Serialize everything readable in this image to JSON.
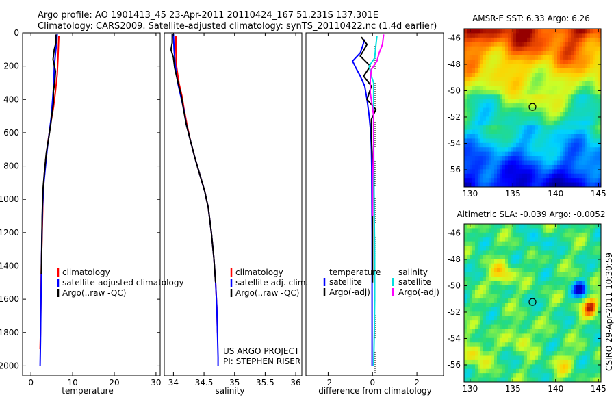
{
  "header": {
    "title_line1": "Argo profile: AO 1901413_45 23-Apr-2011 20110424_167 51.231S 137.301E",
    "title_line2": "Climatology: CARS2009. Satellite-adjusted climatology: synTS_20110422.nc (1.4d earlier)"
  },
  "side_text": "CSIRO 29-Apr-2011 10:30:59",
  "chart_data": [
    {
      "type": "line",
      "xlabel": "temperature",
      "xlim": [
        -2,
        31
      ],
      "ylim": [
        2060,
        0
      ],
      "xticks": [
        "0",
        "10",
        "20",
        "30"
      ],
      "xtick_values": [
        0,
        10,
        20,
        30
      ],
      "yticks": [
        "0",
        "200",
        "400",
        "600",
        "800",
        "1000",
        "1200",
        "1400",
        "1600",
        "1800",
        "2000"
      ],
      "ytick_values": [
        0,
        200,
        400,
        600,
        800,
        1000,
        1200,
        1400,
        1600,
        1800,
        2000
      ],
      "legend": [
        "climatology",
        "satellite-adjusted climatology",
        "Argo(..raw -QC)"
      ],
      "series": [
        {
          "name": "climatology",
          "color": "#ff0000",
          "points": [
            [
              6.7,
              20
            ],
            [
              6.6,
              80
            ],
            [
              6.5,
              150
            ],
            [
              6.3,
              250
            ],
            [
              5.9,
              350
            ],
            [
              5.4,
              450
            ],
            [
              4.7,
              550
            ],
            [
              4.1,
              650
            ],
            [
              3.6,
              750
            ],
            [
              3.2,
              850
            ],
            [
              2.9,
              1000
            ],
            [
              2.7,
              1200
            ],
            [
              2.5,
              1400
            ],
            [
              2.4,
              1600
            ],
            [
              2.3,
              1800
            ],
            [
              2.2,
              1900
            ]
          ]
        },
        {
          "name": "satellite-adjusted climatology",
          "color": "#0000ff",
          "points": [
            [
              6.3,
              5
            ],
            [
              6.2,
              60
            ],
            [
              6.0,
              100
            ],
            [
              5.8,
              150
            ],
            [
              5.6,
              200
            ],
            [
              5.5,
              300
            ],
            [
              5.2,
              400
            ],
            [
              4.9,
              500
            ],
            [
              4.4,
              600
            ],
            [
              3.9,
              700
            ],
            [
              3.5,
              800
            ],
            [
              3.1,
              900
            ],
            [
              2.8,
              1050
            ],
            [
              2.6,
              1250
            ],
            [
              2.5,
              1450
            ],
            [
              2.4,
              1650
            ],
            [
              2.3,
              1850
            ],
            [
              2.2,
              2000
            ]
          ]
        },
        {
          "name": "Argo(..raw -QC)",
          "color": "#000000",
          "points": [
            [
              6.0,
              10
            ],
            [
              6.0,
              60
            ],
            [
              5.6,
              100
            ],
            [
              5.3,
              160
            ],
            [
              5.9,
              230
            ],
            [
              5.7,
              300
            ],
            [
              5.4,
              350
            ],
            [
              5.4,
              420
            ],
            [
              5.1,
              480
            ],
            [
              4.7,
              560
            ],
            [
              4.2,
              640
            ],
            [
              3.7,
              720
            ],
            [
              3.3,
              820
            ],
            [
              2.9,
              940
            ],
            [
              2.7,
              1100
            ],
            [
              2.6,
              1300
            ],
            [
              2.5,
              1450
            ]
          ]
        }
      ]
    },
    {
      "type": "line",
      "xlabel": "salinity",
      "xlim": [
        33.85,
        36.1
      ],
      "ylim": [
        2060,
        0
      ],
      "xticks": [
        "34",
        "34.5",
        "35",
        "35.5",
        "36"
      ],
      "xtick_values": [
        34,
        34.5,
        35,
        35.5,
        36
      ],
      "yticks": [],
      "legend": [
        "climatology",
        "satellite adj. clim.",
        "Argo(..raw -QC)"
      ],
      "annotations": [
        "US ARGO PROJECT",
        "PI: STEPHEN RISER"
      ],
      "series": [
        {
          "name": "climatology",
          "color": "#ff0000",
          "points": [
            [
              34.04,
              20
            ],
            [
              34.04,
              100
            ],
            [
              34.05,
              200
            ],
            [
              34.09,
              300
            ],
            [
              34.14,
              380
            ],
            [
              34.17,
              450
            ],
            [
              34.22,
              550
            ],
            [
              34.28,
              650
            ],
            [
              34.35,
              750
            ],
            [
              34.43,
              850
            ],
            [
              34.51,
              950
            ],
            [
              34.57,
              1050
            ],
            [
              34.62,
              1200
            ],
            [
              34.66,
              1350
            ],
            [
              34.69,
              1500
            ],
            [
              34.71,
              1650
            ],
            [
              34.72,
              1800
            ]
          ]
        },
        {
          "name": "satellite adj. clim.",
          "color": "#0000ff",
          "points": [
            [
              34.0,
              5
            ],
            [
              34.01,
              100
            ],
            [
              34.03,
              200
            ],
            [
              34.07,
              300
            ],
            [
              34.12,
              380
            ],
            [
              34.17,
              460
            ],
            [
              34.21,
              550
            ],
            [
              34.28,
              650
            ],
            [
              34.35,
              750
            ],
            [
              34.43,
              850
            ],
            [
              34.51,
              950
            ],
            [
              34.57,
              1050
            ],
            [
              34.62,
              1200
            ],
            [
              34.66,
              1350
            ],
            [
              34.69,
              1500
            ],
            [
              34.71,
              1650
            ],
            [
              34.72,
              1800
            ],
            [
              34.73,
              1950
            ],
            [
              34.73,
              2000
            ]
          ]
        },
        {
          "name": "Argo(..raw -QC)",
          "color": "#000000",
          "points": [
            [
              33.98,
              5
            ],
            [
              33.98,
              60
            ],
            [
              33.96,
              100
            ],
            [
              34.0,
              150
            ],
            [
              34.02,
              210
            ],
            [
              34.05,
              260
            ],
            [
              34.09,
              320
            ],
            [
              34.13,
              380
            ],
            [
              34.16,
              450
            ],
            [
              34.21,
              550
            ],
            [
              34.28,
              650
            ],
            [
              34.35,
              750
            ],
            [
              34.43,
              850
            ],
            [
              34.51,
              950
            ],
            [
              34.57,
              1050
            ],
            [
              34.62,
              1200
            ],
            [
              34.66,
              1350
            ],
            [
              34.69,
              1500
            ]
          ]
        }
      ]
    },
    {
      "type": "line",
      "xlabel": "difference from climatology",
      "xlim": [
        -3,
        3.2
      ],
      "ylim": [
        2060,
        0
      ],
      "xticks": [
        "-2",
        "0",
        "2"
      ],
      "xtick_values": [
        -2,
        0,
        2
      ],
      "yticks": [],
      "legend_headers": [
        "temperature",
        "salinity"
      ],
      "legend": [
        "satellite",
        "Argo(-adj)",
        "satellite",
        "Argo(-adj)"
      ],
      "series": [
        {
          "name": "satellite",
          "color": "#0000ff",
          "points": [
            [
              -0.35,
              40
            ],
            [
              -0.45,
              80
            ],
            [
              -0.55,
              120
            ],
            [
              -0.9,
              170
            ],
            [
              -0.75,
              210
            ],
            [
              -0.55,
              260
            ],
            [
              -0.35,
              320
            ],
            [
              -0.25,
              400
            ],
            [
              -0.15,
              500
            ],
            [
              -0.08,
              600
            ],
            [
              -0.05,
              700
            ],
            [
              -0.04,
              800
            ],
            [
              -0.03,
              1000
            ],
            [
              -0.02,
              1200
            ],
            [
              -0.02,
              1600
            ],
            [
              -0.02,
              2000
            ]
          ]
        },
        {
          "name": "Argo(-adj)",
          "color": "#000000",
          "points": [
            [
              -0.5,
              25
            ],
            [
              -0.25,
              70
            ],
            [
              -0.55,
              140
            ],
            [
              -0.1,
              200
            ],
            [
              -0.4,
              260
            ],
            [
              -0.05,
              320
            ],
            [
              -0.25,
              400
            ],
            [
              0.15,
              460
            ],
            [
              -0.05,
              520
            ],
            [
              -0.05,
              620
            ],
            [
              0,
              800
            ],
            [
              0,
              1100
            ],
            [
              0,
              1500
            ]
          ]
        },
        {
          "name": "satellite",
          "color": "#00e0e0",
          "points": [
            [
              0.2,
              20
            ],
            [
              0.15,
              80
            ],
            [
              0.1,
              150
            ],
            [
              -0.15,
              200
            ],
            [
              -0.05,
              260
            ],
            [
              0.05,
              300
            ],
            [
              0.05,
              500
            ],
            [
              0.06,
              800
            ],
            [
              0.08,
              1100
            ],
            [
              0.1,
              1350
            ],
            [
              0.1,
              1600
            ],
            [
              0.08,
              1800
            ],
            [
              0.05,
              2000
            ]
          ]
        },
        {
          "name": "Argo(-adj)",
          "color": "#ff00ff",
          "points": [
            [
              0.5,
              10
            ],
            [
              0.45,
              70
            ],
            [
              0.3,
              120
            ],
            [
              0.2,
              170
            ],
            [
              -0.05,
              220
            ],
            [
              -0.1,
              280
            ],
            [
              -0.1,
              360
            ],
            [
              0,
              450
            ],
            [
              0.05,
              500
            ],
            [
              0.05,
              700
            ],
            [
              0,
              900
            ],
            [
              0,
              1100
            ]
          ]
        }
      ]
    },
    {
      "type": "heatmap",
      "title": "AMSR-E SST: 6.33 Argo: 6.26",
      "xlim": [
        129.3,
        145.3
      ],
      "ylim": [
        -57.3,
        -45.3
      ],
      "xticks": [
        "130",
        "135",
        "140",
        "145"
      ],
      "xtick_values": [
        130,
        135,
        140,
        145
      ],
      "yticks": [
        "-46",
        "-48",
        "-50",
        "-52",
        "-54",
        "-56"
      ],
      "ytick_values": [
        -46,
        -48,
        -50,
        -52,
        -54,
        -56
      ],
      "marker": [
        137.3,
        -51.23
      ]
    },
    {
      "type": "heatmap",
      "title": "Altimetric SLA: -0.039 Argo: -0.0052",
      "xlim": [
        129.3,
        145.3
      ],
      "ylim": [
        -57.3,
        -45.3
      ],
      "xticks": [
        "130",
        "135",
        "140",
        "145"
      ],
      "xtick_values": [
        130,
        135,
        140,
        145
      ],
      "yticks": [
        "-46",
        "-48",
        "-50",
        "-52",
        "-54",
        "-56"
      ],
      "ytick_values": [
        -46,
        -48,
        -50,
        -52,
        -54,
        -56
      ],
      "marker": [
        137.3,
        -51.23
      ]
    }
  ]
}
